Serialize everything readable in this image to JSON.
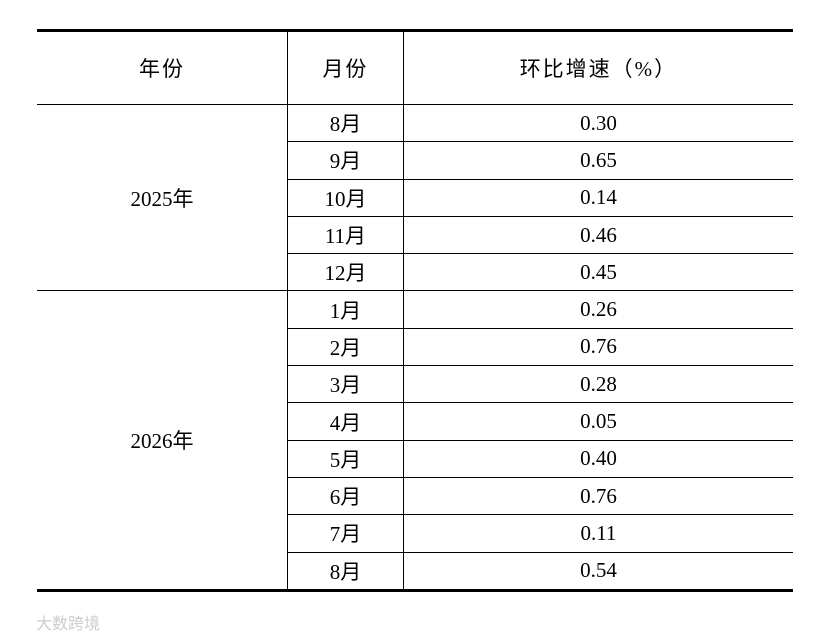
{
  "header": {
    "columns": [
      "年份",
      "月份",
      "环比增速（%）"
    ]
  },
  "table": {
    "groups": [
      {
        "year": "2025年",
        "rows": [
          {
            "month": "8月",
            "value": "0.30"
          },
          {
            "month": "9月",
            "value": "0.65"
          },
          {
            "month": "10月",
            "value": "0.14"
          },
          {
            "month": "11月",
            "value": "0.46"
          },
          {
            "month": "12月",
            "value": "0.45"
          }
        ]
      },
      {
        "year": "2026年",
        "rows": [
          {
            "month": "1月",
            "value": "0.26"
          },
          {
            "month": "2月",
            "value": "0.76"
          },
          {
            "month": "3月",
            "value": "0.28"
          },
          {
            "month": "4月",
            "value": "0.05"
          },
          {
            "month": "5月",
            "value": "0.40"
          },
          {
            "month": "6月",
            "value": "0.76"
          },
          {
            "month": "7月",
            "value": "0.11"
          },
          {
            "month": "8月",
            "value": "0.54"
          }
        ]
      }
    ]
  },
  "watermark": "大数跨境"
}
